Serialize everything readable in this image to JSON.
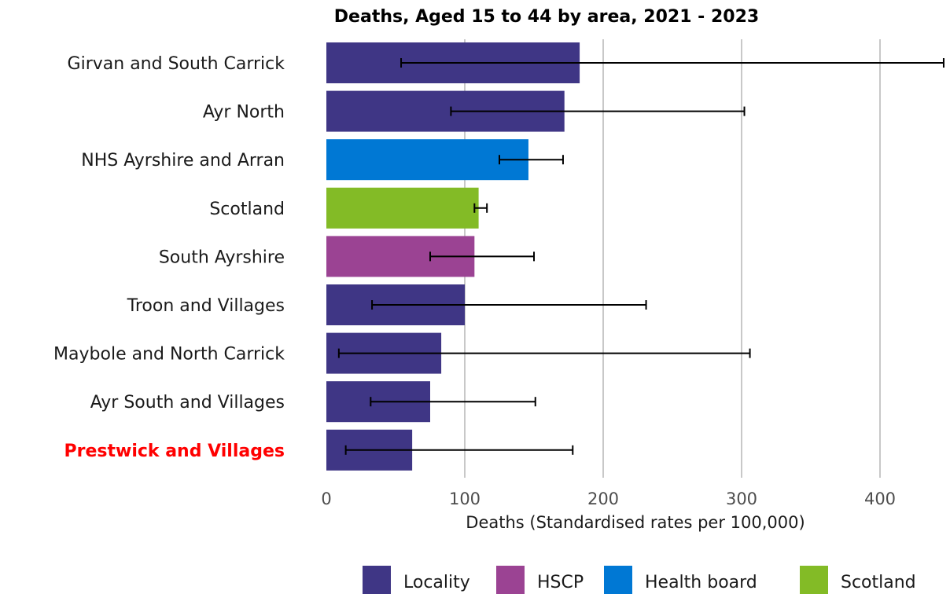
{
  "chart_data": {
    "type": "bar",
    "orientation": "horizontal",
    "title": "Deaths, Aged 15 to 44 by area, 2021 - 2023",
    "xlabel": "Deaths (Standardised rates per 100,000)",
    "ylabel": "",
    "xlim": [
      0,
      450
    ],
    "xticks": [
      0,
      100,
      200,
      300,
      400
    ],
    "grid": "vertical major gridlines",
    "legend_position": "bottom",
    "highlighted_category": "Prestwick and Villages",
    "highlight_color": "#ff0000",
    "categories": [
      "Girvan and South Carrick",
      "Ayr North",
      "NHS Ayrshire and Arran",
      "Scotland",
      "South Ayrshire",
      "Troon and Villages",
      "Maybole and North Carrick",
      "Ayr South and Villages",
      "Prestwick and Villages"
    ],
    "values": [
      183,
      172,
      146,
      110,
      107,
      100,
      83,
      75,
      62
    ],
    "ci_lower": [
      54,
      90,
      125,
      107,
      75,
      33,
      9,
      32,
      14
    ],
    "ci_upper": [
      446,
      302,
      171,
      116,
      150,
      231,
      306,
      151,
      178
    ],
    "groups": [
      "Locality",
      "Locality",
      "Health board",
      "Scotland",
      "HSCP",
      "Locality",
      "Locality",
      "Locality",
      "Locality"
    ],
    "legend": [
      {
        "name": "Locality",
        "color": "#3f3685"
      },
      {
        "name": "HSCP",
        "color": "#9b4393"
      },
      {
        "name": "Health board",
        "color": "#0078d4"
      },
      {
        "name": "Scotland",
        "color": "#83bb26"
      }
    ]
  }
}
